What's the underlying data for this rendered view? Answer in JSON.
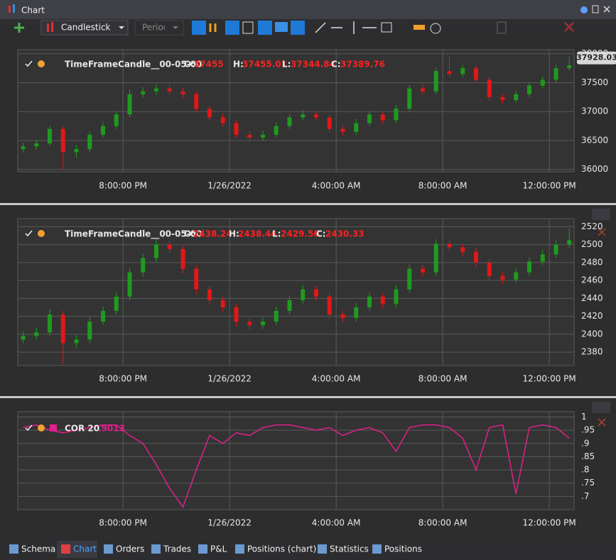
{
  "window": {
    "title": "Chart"
  },
  "toolbar": {
    "chart_style": "Candlestick",
    "period": "Period"
  },
  "tabs": [
    "Schema",
    "Chart",
    "Orders",
    "Trades",
    "P&L",
    "Positions (chart)",
    "Statistics",
    "Positions"
  ],
  "chart_data": [
    {
      "type": "candlestick",
      "name": "TimeFrameCandle__00-05-00",
      "legend": {
        "o_label": "O:",
        "o": "37455",
        "h_label": "H:",
        "h": "37455.01",
        "l_label": "L:",
        "l": "37344.84",
        "c_label": "C:",
        "c": "37389.76"
      },
      "last_price": 37928.03,
      "up_color": "#1f9a1f",
      "down_color": "#e01818",
      "grid": true,
      "xlim": [
        16.05,
        36.93
      ],
      "xticks": [
        {
          "value": 20,
          "label": "8:00:00 PM"
        },
        {
          "value": 24,
          "label": "1/26/2022"
        },
        {
          "value": 28,
          "label": "4:00:00 AM"
        },
        {
          "value": 32,
          "label": "8:00:00 AM"
        },
        {
          "value": 36,
          "label": "12:00:00 PM"
        }
      ],
      "ylim": [
        35960,
        38070
      ],
      "yticks": [
        36000,
        36500,
        37000,
        37500,
        38000
      ],
      "x": [
        16.25,
        16.75,
        17.25,
        17.75,
        18.25,
        18.75,
        19.25,
        19.75,
        20.25,
        20.75,
        21.25,
        21.75,
        22.25,
        22.75,
        23.25,
        23.75,
        24.25,
        24.75,
        25.25,
        25.75,
        26.25,
        26.75,
        27.25,
        27.75,
        28.25,
        28.75,
        29.25,
        29.75,
        30.25,
        30.75,
        31.25,
        31.75,
        32.25,
        32.75,
        33.25,
        33.75,
        34.25,
        34.75,
        35.25,
        35.75,
        36.25,
        36.75
      ],
      "candles": [
        [
          36350,
          36460,
          36290,
          36400
        ],
        [
          36400,
          36510,
          36340,
          36450
        ],
        [
          36450,
          36760,
          36400,
          36700
        ],
        [
          36700,
          36750,
          36000,
          36300
        ],
        [
          36300,
          36420,
          36200,
          36350
        ],
        [
          36350,
          36660,
          36300,
          36600
        ],
        [
          36600,
          36820,
          36550,
          36750
        ],
        [
          36750,
          37010,
          36700,
          36950
        ],
        [
          36950,
          37380,
          36900,
          37300
        ],
        [
          37300,
          37420,
          37240,
          37350
        ],
        [
          37350,
          37480,
          37290,
          37400
        ],
        [
          37400,
          37470,
          37290,
          37350
        ],
        [
          37350,
          37410,
          37240,
          37300
        ],
        [
          37300,
          37350,
          36990,
          37050
        ],
        [
          37050,
          37100,
          36840,
          36900
        ],
        [
          36900,
          36970,
          36740,
          36800
        ],
        [
          36800,
          36850,
          36540,
          36600
        ],
        [
          36600,
          36660,
          36480,
          36550
        ],
        [
          36550,
          36670,
          36500,
          36600
        ],
        [
          36600,
          36810,
          36550,
          36750
        ],
        [
          36750,
          36960,
          36700,
          36900
        ],
        [
          36900,
          37020,
          36850,
          36950
        ],
        [
          36950,
          37010,
          36840,
          36900
        ],
        [
          36900,
          36950,
          36640,
          36700
        ],
        [
          36700,
          36760,
          36590,
          36650
        ],
        [
          36650,
          36870,
          36600,
          36800
        ],
        [
          36800,
          37010,
          36750,
          36950
        ],
        [
          36950,
          37000,
          36790,
          36850
        ],
        [
          36850,
          37110,
          36800,
          37050
        ],
        [
          37050,
          37460,
          37000,
          37400
        ],
        [
          37400,
          37470,
          37290,
          37350
        ],
        [
          37350,
          37760,
          37300,
          37700
        ],
        [
          37700,
          37960,
          37600,
          37650
        ],
        [
          37650,
          37810,
          37600,
          37750
        ],
        [
          37750,
          37800,
          37490,
          37550
        ],
        [
          37550,
          37600,
          37190,
          37250
        ],
        [
          37250,
          37310,
          37140,
          37200
        ],
        [
          37200,
          37360,
          37150,
          37300
        ],
        [
          37300,
          37510,
          37250,
          37450
        ],
        [
          37450,
          37610,
          37400,
          37550
        ],
        [
          37550,
          37810,
          37500,
          37750
        ],
        [
          37750,
          37950,
          37700,
          37800
        ]
      ]
    },
    {
      "type": "candlestick",
      "name": "TimeFrameCandle__00-05-00",
      "legend": {
        "o_label": "O:",
        "o": "2438.24",
        "h_label": "H:",
        "h": "2438.44",
        "l_label": "L:",
        "l": "2429.56",
        "c_label": "C:",
        "c": "2430.33"
      },
      "up_color": "#1f9a1f",
      "down_color": "#e01818",
      "grid": true,
      "xlim": [
        16.05,
        36.93
      ],
      "xticks": [
        {
          "value": 20,
          "label": "8:00:00 PM"
        },
        {
          "value": 24,
          "label": "1/26/2022"
        },
        {
          "value": 28,
          "label": "4:00:00 AM"
        },
        {
          "value": 32,
          "label": "8:00:00 AM"
        },
        {
          "value": 36,
          "label": "12:00:00 PM"
        }
      ],
      "ylim": [
        2365,
        2529
      ],
      "yticks": [
        2380,
        2400,
        2420,
        2440,
        2460,
        2480,
        2500,
        2520
      ],
      "x": [
        16.25,
        16.75,
        17.25,
        17.75,
        18.25,
        18.75,
        19.25,
        19.75,
        20.25,
        20.75,
        21.25,
        21.75,
        22.25,
        22.75,
        23.25,
        23.75,
        24.25,
        24.75,
        25.25,
        25.75,
        26.25,
        26.75,
        27.25,
        27.75,
        28.25,
        28.75,
        29.25,
        29.75,
        30.25,
        30.75,
        31.25,
        31.75,
        32.25,
        32.75,
        33.25,
        33.75,
        34.25,
        34.75,
        35.25,
        35.75,
        36.25,
        36.75
      ],
      "candles": [
        [
          2394,
          2403,
          2390,
          2398
        ],
        [
          2398,
          2407,
          2394,
          2402
        ],
        [
          2402,
          2428,
          2398,
          2422
        ],
        [
          2422,
          2426,
          2367,
          2390
        ],
        [
          2390,
          2399,
          2385,
          2394
        ],
        [
          2394,
          2419,
          2390,
          2414
        ],
        [
          2414,
          2431,
          2410,
          2426
        ],
        [
          2426,
          2447,
          2422,
          2442
        ],
        [
          2442,
          2474,
          2438,
          2469
        ],
        [
          2469,
          2490,
          2464,
          2485
        ],
        [
          2485,
          2506,
          2480,
          2500
        ],
        [
          2500,
          2504,
          2490,
          2495
        ],
        [
          2495,
          2499,
          2468,
          2473
        ],
        [
          2473,
          2477,
          2445,
          2450
        ],
        [
          2450,
          2454,
          2433,
          2438
        ],
        [
          2438,
          2442,
          2425,
          2430
        ],
        [
          2430,
          2434,
          2409,
          2414
        ],
        [
          2414,
          2418,
          2404,
          2410
        ],
        [
          2410,
          2419,
          2406,
          2414
        ],
        [
          2414,
          2431,
          2410,
          2426
        ],
        [
          2426,
          2443,
          2422,
          2438
        ],
        [
          2438,
          2455,
          2434,
          2450
        ],
        [
          2450,
          2454,
          2437,
          2442
        ],
        [
          2442,
          2446,
          2417,
          2422
        ],
        [
          2422,
          2426,
          2413,
          2418
        ],
        [
          2418,
          2435,
          2414,
          2430
        ],
        [
          2430,
          2447,
          2426,
          2442
        ],
        [
          2442,
          2446,
          2429,
          2434
        ],
        [
          2434,
          2455,
          2430,
          2450
        ],
        [
          2450,
          2478,
          2446,
          2473
        ],
        [
          2473,
          2477,
          2464,
          2469
        ],
        [
          2469,
          2506,
          2465,
          2501
        ],
        [
          2501,
          2505,
          2492,
          2497
        ],
        [
          2497,
          2501,
          2487,
          2492
        ],
        [
          2492,
          2496,
          2475,
          2480
        ],
        [
          2480,
          2484,
          2460,
          2465
        ],
        [
          2465,
          2469,
          2456,
          2461
        ],
        [
          2461,
          2474,
          2457,
          2469
        ],
        [
          2469,
          2486,
          2465,
          2481
        ],
        [
          2481,
          2494,
          2477,
          2489
        ],
        [
          2489,
          2505,
          2485,
          2500
        ],
        [
          2500,
          2518,
          2496,
          2505
        ]
      ]
    },
    {
      "type": "line",
      "name": "COR 20",
      "legend": {
        "value": ".9013"
      },
      "color": "#e0208c",
      "grid": true,
      "xlim": [
        16.05,
        36.93
      ],
      "xticks": [
        {
          "value": 20,
          "label": "8:00:00 PM"
        },
        {
          "value": 24,
          "label": "1/26/2022"
        },
        {
          "value": 28,
          "label": "4:00:00 AM"
        },
        {
          "value": 32,
          "label": "8:00:00 AM"
        },
        {
          "value": 36,
          "label": "12:00:00 PM"
        }
      ],
      "ylim": [
        0.65,
        1.02
      ],
      "yticks": [
        1,
        {
          "value": 0.95,
          "label": ".95"
        },
        {
          "value": 0.9,
          "label": ".9"
        },
        {
          "value": 0.85,
          "label": ".85"
        },
        {
          "value": 0.8,
          "label": ".8"
        },
        {
          "value": 0.75,
          "label": ".75"
        },
        {
          "value": 0.7,
          "label": ".7"
        }
      ],
      "x": [
        16.25,
        16.75,
        17.25,
        17.75,
        18.25,
        18.75,
        19.25,
        19.75,
        20.25,
        20.75,
        21.25,
        21.75,
        22.25,
        22.75,
        23.25,
        23.75,
        24.25,
        24.75,
        25.25,
        25.75,
        26.25,
        26.75,
        27.25,
        27.75,
        28.25,
        28.75,
        29.25,
        29.75,
        30.25,
        30.75,
        31.25,
        31.75,
        32.25,
        32.75,
        33.25,
        33.75,
        34.25,
        34.75,
        35.25,
        35.75,
        36.25,
        36.75
      ],
      "values": [
        0.96,
        0.97,
        0.95,
        0.94,
        0.95,
        0.96,
        0.97,
        0.97,
        0.93,
        0.9,
        0.82,
        0.73,
        0.66,
        0.8,
        0.93,
        0.9,
        0.94,
        0.93,
        0.96,
        0.97,
        0.97,
        0.96,
        0.95,
        0.96,
        0.93,
        0.95,
        0.96,
        0.94,
        0.87,
        0.96,
        0.97,
        0.97,
        0.96,
        0.92,
        0.8,
        0.96,
        0.97,
        0.71,
        0.96,
        0.97,
        0.96,
        0.92
      ]
    }
  ]
}
